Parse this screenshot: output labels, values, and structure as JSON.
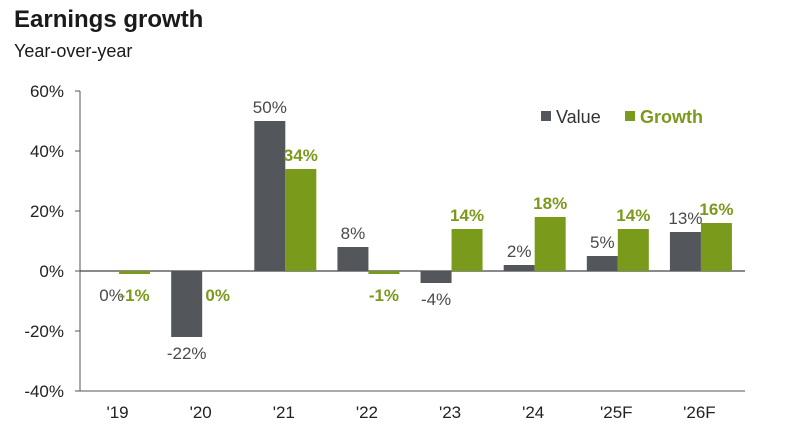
{
  "chart_data": {
    "type": "bar",
    "title": "Earnings growth",
    "subtitle": "Year-over-year",
    "categories": [
      "'19",
      "'20",
      "'21",
      "'22",
      "'23",
      "'24",
      "'25F",
      "'26F"
    ],
    "series": [
      {
        "name": "Value",
        "color": "#53565a",
        "values": [
          0,
          -22,
          50,
          8,
          -4,
          2,
          5,
          13
        ],
        "labels": [
          "0%",
          "-22%",
          "50%",
          "8%",
          "-4%",
          "2%",
          "5%",
          "13%"
        ]
      },
      {
        "name": "Growth",
        "color": "#7a9a1c",
        "values": [
          -1,
          0,
          34,
          -1,
          14,
          18,
          14,
          16
        ],
        "labels": [
          "-1%",
          "0%",
          "34%",
          "-1%",
          "14%",
          "18%",
          "14%",
          "16%"
        ]
      }
    ],
    "ylim": [
      -40,
      60
    ],
    "yticks": [
      60,
      40,
      20,
      0,
      -20,
      -40
    ],
    "ytick_labels": [
      "60%",
      "40%",
      "20%",
      "0%",
      "-20%",
      "-40%"
    ],
    "xlabel": "",
    "ylabel": "",
    "grid": false,
    "legend": "top-right"
  }
}
